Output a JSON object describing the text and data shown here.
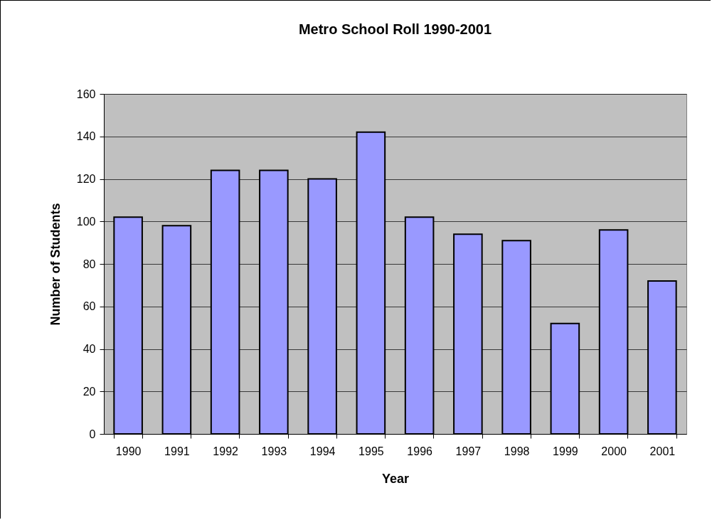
{
  "chart_data": {
    "type": "bar",
    "title": "Metro School Roll 1990-2001",
    "xlabel": "Year",
    "ylabel": "Number of Students",
    "categories": [
      "1990",
      "1991",
      "1992",
      "1993",
      "1994",
      "1995",
      "1996",
      "1997",
      "1998",
      "1999",
      "2000",
      "2001"
    ],
    "values": [
      102,
      98,
      124,
      124,
      120,
      142,
      102,
      94,
      91,
      52,
      96,
      72
    ],
    "color": "#9999ff",
    "ylim": [
      0,
      160
    ],
    "yticks": [
      0,
      20,
      40,
      60,
      80,
      100,
      120,
      140,
      160
    ],
    "grid": "y"
  }
}
